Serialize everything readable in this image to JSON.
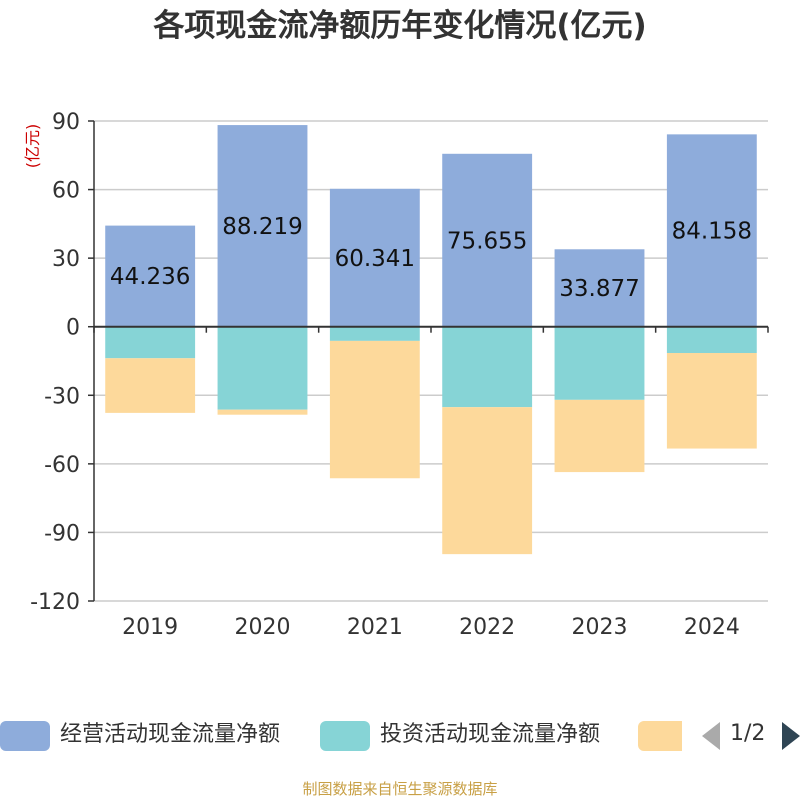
{
  "chart_data": {
    "type": "bar",
    "stacked": true,
    "title": "各项现金流净额历年变化情况(亿元)",
    "yunit": "(亿元)",
    "categories": [
      "2019",
      "2020",
      "2021",
      "2022",
      "2023",
      "2024"
    ],
    "ylim": [
      -120,
      90
    ],
    "yticks": [
      90,
      60,
      30,
      0,
      -30,
      -60,
      -90,
      -120
    ],
    "grid": true,
    "legend_position": "bottom",
    "series": [
      {
        "name": "经营活动现金流量净额",
        "color": "#8eacdb",
        "values": [
          44.236,
          88.219,
          60.341,
          75.655,
          33.877,
          84.158
        ],
        "show_labels": true
      },
      {
        "name": "投资活动现金流量净额",
        "color": "#86d4d6",
        "values": [
          -13.8,
          -36.3,
          -6.2,
          -35.2,
          -32.0,
          -11.5
        ],
        "show_labels": false
      },
      {
        "name": "",
        "color": "#fdd99b",
        "values": [
          -23.9,
          -2.2,
          -60.1,
          -64.3,
          -31.6,
          -41.8
        ],
        "show_labels": false
      }
    ]
  },
  "legend": {
    "pager": "1/2"
  },
  "source_text": "制图数据来自恒生聚源数据库"
}
